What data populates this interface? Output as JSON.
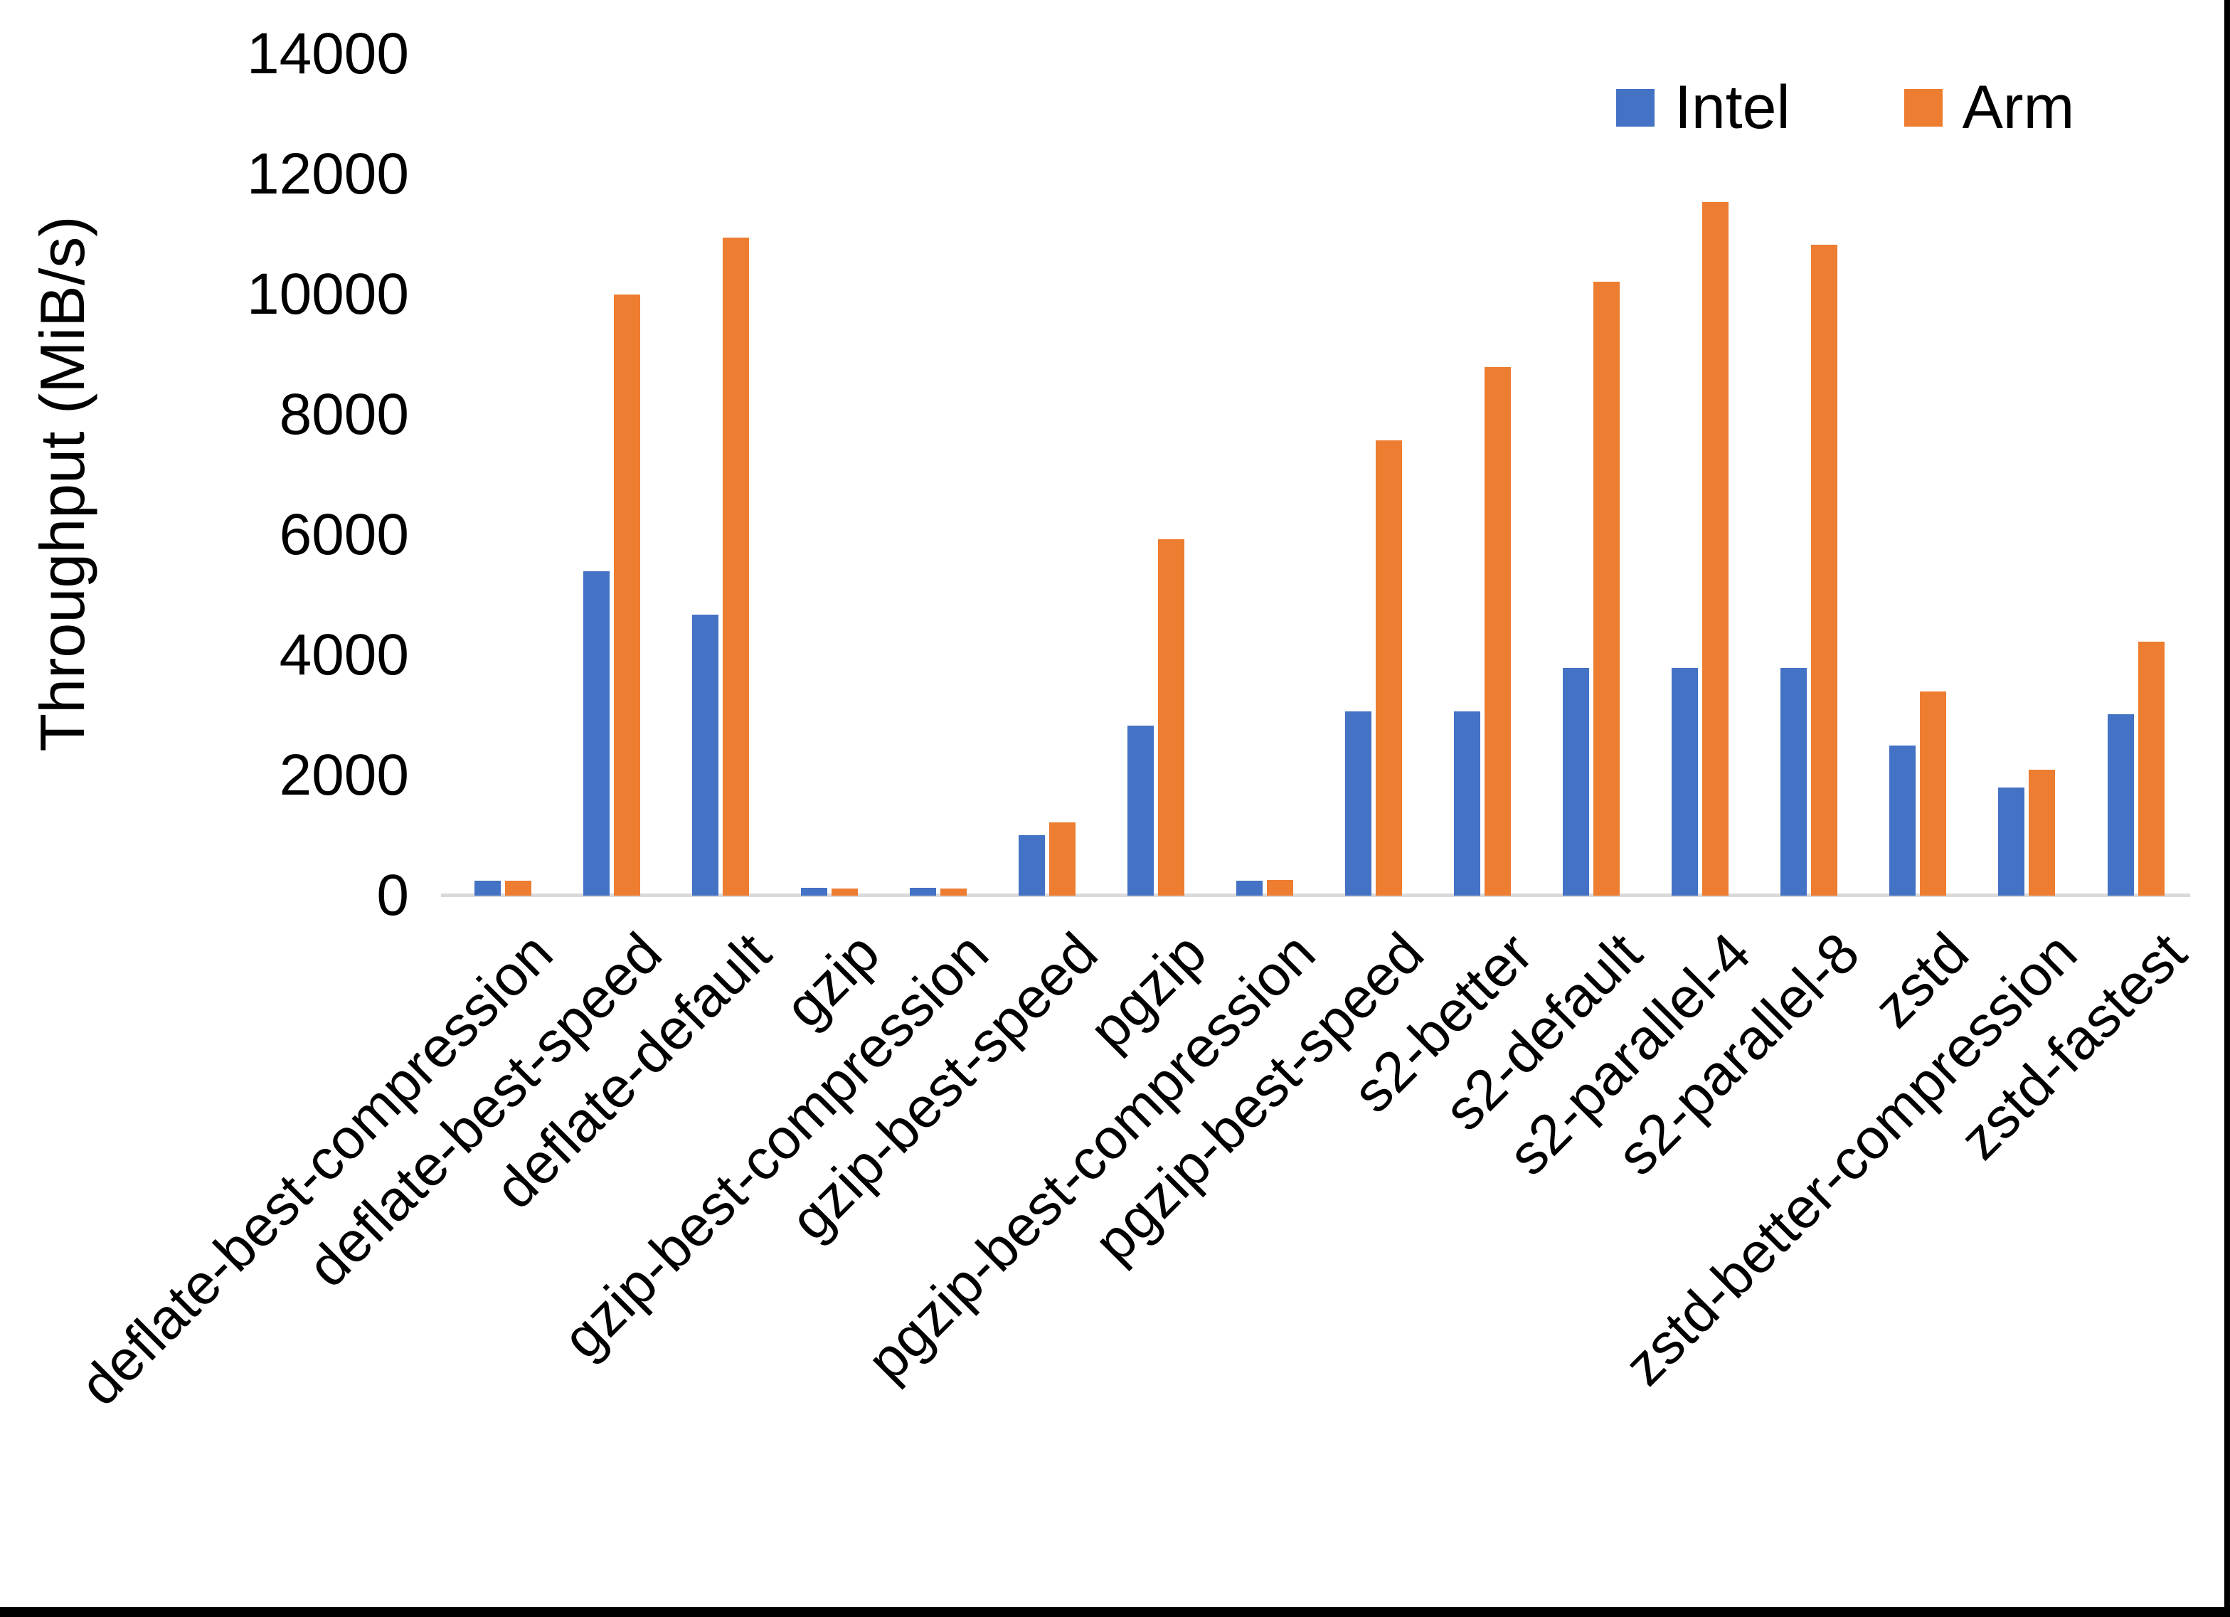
{
  "page": {
    "background": "#ffffff",
    "right_border_color": "#000000",
    "bottom_border_color": "#000000"
  },
  "chart_data": {
    "type": "bar",
    "title": "",
    "xlabel": "",
    "ylabel": "Throughput (MiB/s)",
    "ylim": [
      0,
      14000
    ],
    "yticks": [
      0,
      2000,
      4000,
      6000,
      8000,
      10000,
      12000,
      14000
    ],
    "grid": false,
    "legend_position": "top-right",
    "axis_line_color": "#D9D9D9",
    "categories": [
      "deflate-best-compression",
      "deflate-best-speed",
      "deflate-default",
      "gzip",
      "gzip-best-compression",
      "gzip-best-speed",
      "pgzip",
      "pgzip-best-compression",
      "pgzip-best-speed",
      "s2-better",
      "s2-default",
      "s2-parallel-4",
      "s2-parallel-8",
      "zstd",
      "zstd-better-compression",
      "zstd-fastest"
    ],
    "series": [
      {
        "name": "Intel",
        "color": "#4472C4",
        "values": [
          250,
          5400,
          4670,
          135,
          135,
          1000,
          2830,
          250,
          3060,
          3060,
          3790,
          3790,
          3790,
          2500,
          1800,
          3020
        ]
      },
      {
        "name": "Arm",
        "color": "#ED7D31",
        "values": [
          250,
          10000,
          10950,
          115,
          120,
          1220,
          5930,
          260,
          7570,
          8790,
          10210,
          11540,
          10830,
          3400,
          2100,
          4220
        ]
      }
    ]
  }
}
